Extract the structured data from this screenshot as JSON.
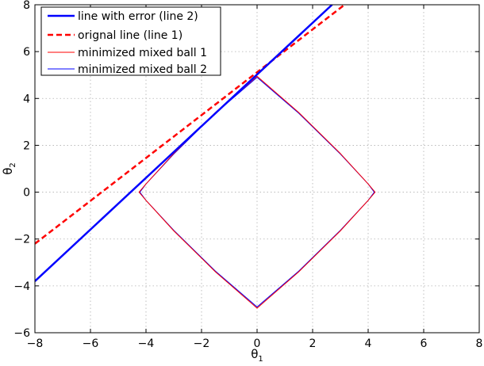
{
  "chart_data": {
    "type": "line",
    "xlim": [
      -8,
      8
    ],
    "ylim": [
      -6,
      8
    ],
    "xticks": [
      -8,
      -6,
      -4,
      -2,
      0,
      2,
      4,
      6,
      8
    ],
    "yticks": [
      -6,
      -4,
      -2,
      0,
      2,
      4,
      6,
      8
    ],
    "xticklabels": [
      "−8",
      "−6",
      "−4",
      "−2",
      "0",
      "2",
      "4",
      "6",
      "8"
    ],
    "yticklabels": [
      "−6",
      "−4",
      "−2",
      "0",
      "2",
      "4",
      "6",
      "8"
    ],
    "xlabel": "θ",
    "xlabel_sub": "1",
    "ylabel": "θ",
    "ylabel_sub": "2",
    "grid": true,
    "legend_position": "top-left",
    "series": [
      {
        "name": "line with error (line 2)",
        "color": "#0000ff",
        "style": "solid",
        "width": 2.5,
        "x": [
          -8,
          2.7
        ],
        "y": [
          -3.8,
          8
        ]
      },
      {
        "name": "orignal line (line 1)",
        "color": "#ff0000",
        "style": "dashed",
        "width": 2.5,
        "x": [
          -8,
          3.15
        ],
        "y": [
          -2.2,
          8
        ]
      },
      {
        "name": "minimized mixed ball 1",
        "color": "#ff0000",
        "style": "solid",
        "width": 1,
        "x": [
          0,
          1.5,
          3.0,
          4.0,
          4.25,
          4.0,
          3.0,
          1.5,
          0,
          -1.5,
          -3.0,
          -4.0,
          -4.25,
          -4.0,
          -3.0,
          -1.5,
          0
        ],
        "y": [
          4.95,
          3.4,
          1.65,
          0.35,
          0,
          -0.35,
          -1.65,
          -3.4,
          -4.95,
          -3.4,
          -1.65,
          -0.35,
          0,
          0.35,
          1.65,
          3.4,
          4.95
        ]
      },
      {
        "name": "minimized mixed ball 2",
        "color": "#0000ff",
        "style": "solid",
        "width": 1,
        "x": [
          0,
          1.5,
          3.0,
          4.0,
          4.22,
          4.0,
          3.0,
          1.5,
          0,
          -1.5,
          -3.0,
          -4.0,
          -4.22,
          -4.0,
          -3.0,
          -1.5,
          0
        ],
        "y": [
          4.9,
          3.37,
          1.63,
          0.35,
          0,
          -0.35,
          -1.63,
          -3.37,
          -4.9,
          -3.37,
          -1.63,
          -0.35,
          0,
          0.35,
          1.63,
          3.37,
          4.9
        ]
      }
    ]
  }
}
